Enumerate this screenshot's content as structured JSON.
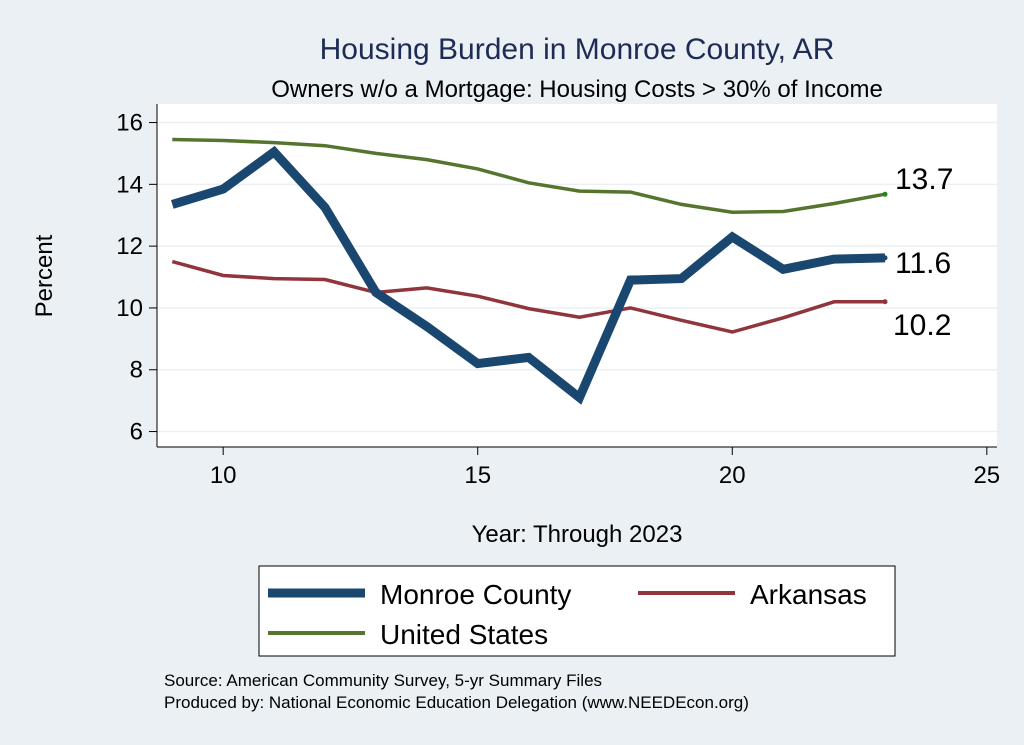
{
  "chart_data": {
    "type": "line",
    "title": "Housing Burden in Monroe County, AR",
    "subtitle": "Owners w/o a Mortgage: Housing Costs > 30% of Income",
    "xlabel": "Year: Through 2023",
    "ylabel": "Percent",
    "xlim": [
      8.7,
      25.2
    ],
    "ylim": [
      5.5,
      16.6
    ],
    "xticks": [
      10,
      15,
      20,
      25
    ],
    "yticks": [
      6,
      8,
      10,
      12,
      14,
      16
    ],
    "grid": true,
    "legend_position": "bottom",
    "x": [
      9,
      10,
      11,
      12,
      13,
      14,
      15,
      16,
      17,
      18,
      19,
      20,
      21,
      22,
      23
    ],
    "series": [
      {
        "name": "Monroe County",
        "color": "#1a476f",
        "values": [
          13.35,
          13.85,
          15.05,
          13.25,
          10.5,
          9.4,
          8.2,
          8.4,
          7.1,
          10.9,
          10.95,
          12.3,
          11.25,
          11.58,
          11.62
        ],
        "end_label": "11.6"
      },
      {
        "name": "Arkansas",
        "color": "#90353b",
        "values": [
          11.5,
          11.05,
          10.95,
          10.92,
          10.5,
          10.65,
          10.38,
          9.98,
          9.7,
          10.0,
          9.6,
          9.22,
          9.68,
          10.2,
          10.2
        ],
        "end_label": "10.2"
      },
      {
        "name": "United States",
        "color": "#55752f",
        "values": [
          15.45,
          15.42,
          15.35,
          15.25,
          15.0,
          14.8,
          14.5,
          14.05,
          13.78,
          13.75,
          13.35,
          13.1,
          13.12,
          13.38,
          13.68
        ],
        "end_label": "13.7"
      }
    ],
    "source_lines": [
      "Source: American Community Survey, 5-yr Summary Files",
      "Produced by: National Economic Education Delegation (www.NEEDEcon.org)"
    ]
  }
}
